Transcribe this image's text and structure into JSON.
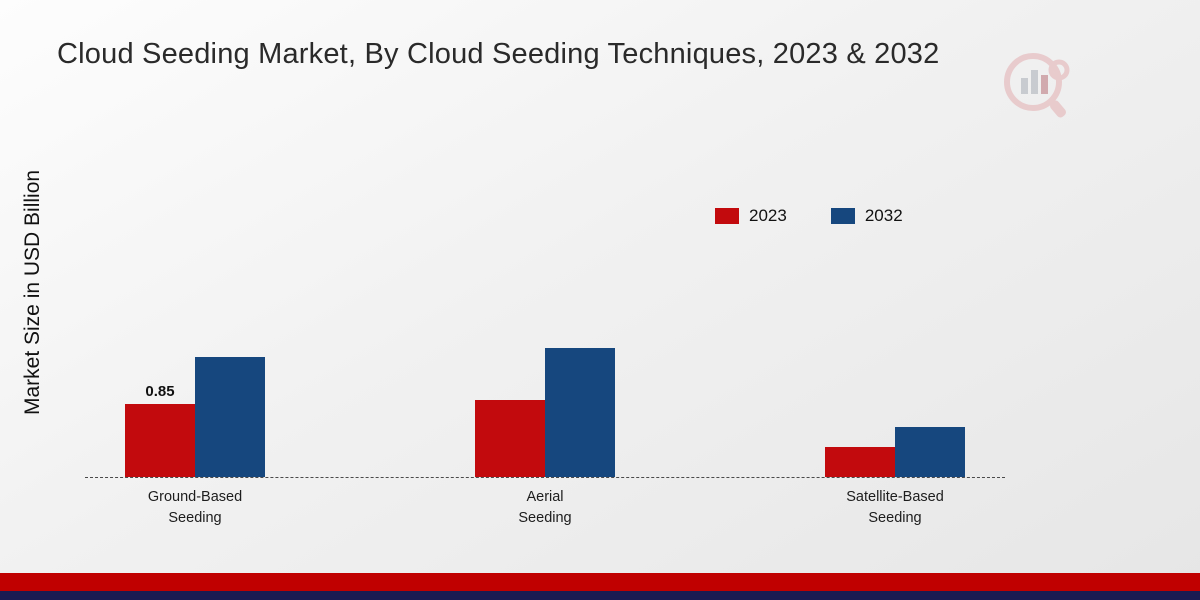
{
  "page": {
    "title": "Cloud Seeding Market, By Cloud Seeding Techniques, 2023 & 2032",
    "ylabel": "Market Size in USD Billion"
  },
  "legend": [
    {
      "label": "2023",
      "color": "#c20a0d"
    },
    {
      "label": "2032",
      "color": "#16477e"
    }
  ],
  "chart_data": {
    "type": "bar",
    "title": "Cloud Seeding Market, By Cloud Seeding Techniques, 2023 & 2032",
    "xlabel": "",
    "ylabel": "Market Size in USD Billion",
    "categories": [
      "Ground-Based Seeding",
      "Aerial Seeding",
      "Satellite-Based Seeding"
    ],
    "series": [
      {
        "name": "2023",
        "color": "#c20a0d",
        "values": [
          0.85,
          0.9,
          0.35
        ]
      },
      {
        "name": "2032",
        "color": "#16477e",
        "values": [
          1.4,
          1.5,
          0.58
        ]
      }
    ],
    "ylim": [
      0,
      1.75
    ],
    "grid": false,
    "baseline_style": "dashed",
    "legend_position": "top-right",
    "data_labels": [
      {
        "series": "2023",
        "category": "Ground-Based Seeding",
        "text": "0.85"
      }
    ]
  },
  "colors": {
    "footer_red": "#c00000",
    "footer_navy": "#1b1b52"
  }
}
